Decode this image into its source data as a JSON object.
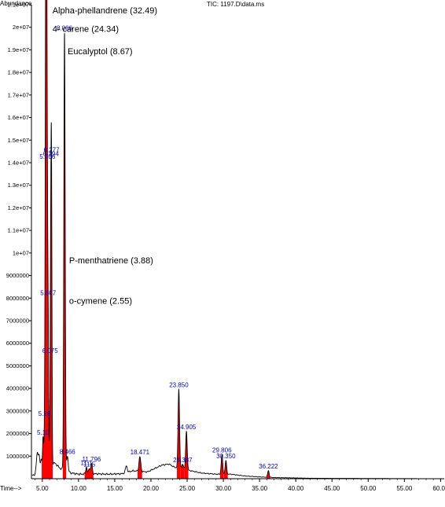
{
  "chart_data": {
    "type": "line",
    "header_title": "TIC: 1197.D\\data.ms",
    "ylabel": "Abundance",
    "xlabel": "Time-->",
    "xlim": [
      3.5,
      60.5
    ],
    "ylim": [
      0,
      21000000
    ],
    "x_ticks": [
      {
        "value": 5,
        "label": "5.00"
      },
      {
        "value": 10,
        "label": "10.00"
      },
      {
        "value": 15,
        "label": "15.00"
      },
      {
        "value": 20,
        "label": "20.00"
      },
      {
        "value": 25,
        "label": "25.00"
      },
      {
        "value": 30,
        "label": "30.00"
      },
      {
        "value": 35,
        "label": "35.00"
      },
      {
        "value": 40,
        "label": "40.00"
      },
      {
        "value": 45,
        "label": "45.00"
      },
      {
        "value": 50,
        "label": "50.00"
      },
      {
        "value": 55,
        "label": "55.00"
      },
      {
        "value": 60,
        "label": "60.00"
      }
    ],
    "y_ticks": [
      {
        "value": 1000000,
        "label": "1000000"
      },
      {
        "value": 2000000,
        "label": "2000000"
      },
      {
        "value": 3000000,
        "label": "3000000"
      },
      {
        "value": 4000000,
        "label": "4000000"
      },
      {
        "value": 5000000,
        "label": "5000000"
      },
      {
        "value": 6000000,
        "label": "6000000"
      },
      {
        "value": 7000000,
        "label": "7000000"
      },
      {
        "value": 8000000,
        "label": "8000000"
      },
      {
        "value": 9000000,
        "label": "9000000"
      },
      {
        "value": 10000000,
        "label": "1e+07"
      },
      {
        "value": 11000000,
        "label": "1.1e+07"
      },
      {
        "value": 12000000,
        "label": "1.2e+07"
      },
      {
        "value": 13000000,
        "label": "1.3e+07"
      },
      {
        "value": 14000000,
        "label": "1.4e+07"
      },
      {
        "value": 15000000,
        "label": "1.5e+07"
      },
      {
        "value": 16000000,
        "label": "1.6e+07"
      },
      {
        "value": 17000000,
        "label": "1.7e+07"
      },
      {
        "value": 18000000,
        "label": "1.8e+07"
      },
      {
        "value": 19000000,
        "label": "1.9e+07"
      },
      {
        "value": 20000000,
        "label": "2e+07"
      },
      {
        "value": 21000000,
        "label": "2.1e+07"
      }
    ],
    "baseline": [
      [
        3.6,
        150000
      ],
      [
        4.5,
        250000
      ],
      [
        6.7,
        700000
      ],
      [
        7.5,
        450000
      ],
      [
        9.0,
        250000
      ],
      [
        10.0,
        200000
      ],
      [
        12.0,
        220000
      ],
      [
        14.0,
        200000
      ],
      [
        16.0,
        220000
      ],
      [
        17.5,
        350000
      ],
      [
        19.5,
        300000
      ],
      [
        20.5,
        450000
      ],
      [
        21.5,
        600000
      ],
      [
        22.5,
        650000
      ],
      [
        23.3,
        500000
      ],
      [
        24.5,
        450000
      ],
      [
        25.5,
        350000
      ],
      [
        27.0,
        250000
      ],
      [
        29.0,
        200000
      ],
      [
        31.0,
        200000
      ],
      [
        33.0,
        120000
      ],
      [
        35.0,
        80000
      ],
      [
        37.0,
        50000
      ],
      [
        39.0,
        40000
      ],
      [
        42.0,
        20000
      ],
      [
        60.4,
        0
      ]
    ],
    "peaks": [
      {
        "x": 4.3,
        "y": 900000,
        "w": 0.12,
        "label": ""
      },
      {
        "x": 4.55,
        "y": 700000,
        "w": 0.1,
        "label": ""
      },
      {
        "x": 4.85,
        "y": 550000,
        "w": 0.1,
        "label": ""
      },
      {
        "x": 5.1,
        "y": 1400000,
        "w": 0.07,
        "label": "5.10"
      },
      {
        "x": 5.28,
        "y": 1150000,
        "w": 0.07,
        "label": "5.28"
      },
      {
        "x": 5.473,
        "y": 19700000,
        "w": 0.08,
        "label": "5.473"
      },
      {
        "x": 5.587,
        "y": 20300000,
        "w": 0.07,
        "label": "5.587"
      },
      {
        "x": 5.706,
        "y": 7100000,
        "w": 0.06,
        "label": "5.706"
      },
      {
        "x": 5.807,
        "y": 5600000,
        "w": 0.06,
        "label": "5.807"
      },
      {
        "x": 6.194,
        "y": 9800000,
        "w": 0.08,
        "label": "6.194"
      },
      {
        "x": 6.277,
        "y": 7800000,
        "w": 0.06,
        "label": "6.277"
      },
      {
        "x": 6.075,
        "y": 1600000,
        "w": 0.1,
        "label": "6.075"
      },
      {
        "x": 8.066,
        "y": 19400000,
        "w": 0.09,
        "label": "8.066"
      },
      {
        "x": 8.466,
        "y": 700000,
        "w": 0.1,
        "label": "8.466"
      },
      {
        "x": 11.1,
        "y": 300000,
        "w": 0.1,
        "label": "11.1"
      },
      {
        "x": 11.5,
        "y": 250000,
        "w": 0.1,
        "label": "11.5"
      },
      {
        "x": 11.796,
        "y": 450000,
        "w": 0.1,
        "label": "11.796"
      },
      {
        "x": 16.6,
        "y": 300000,
        "w": 0.12,
        "label": ""
      },
      {
        "x": 18.471,
        "y": 650000,
        "w": 0.12,
        "label": "18.471"
      },
      {
        "x": 23.85,
        "y": 3500000,
        "w": 0.1,
        "label": "23.850"
      },
      {
        "x": 24.387,
        "y": 200000,
        "w": 0.1,
        "label": "24.387"
      },
      {
        "x": 24.905,
        "y": 1700000,
        "w": 0.1,
        "label": "24.905"
      },
      {
        "x": 29.806,
        "y": 850000,
        "w": 0.1,
        "label": "29.806"
      },
      {
        "x": 30.35,
        "y": 600000,
        "w": 0.1,
        "label": "30.350"
      },
      {
        "x": 36.222,
        "y": 300000,
        "w": 0.1,
        "label": "36.222"
      }
    ],
    "red_fill_peaks": [
      5.1,
      5.28,
      5.473,
      5.587,
      5.706,
      5.807,
      6.194,
      6.277,
      6.075,
      8.066,
      11.1,
      11.5,
      11.796,
      18.471,
      23.85,
      24.387,
      24.905,
      29.806,
      30.35,
      36.222
    ],
    "annotations": [
      {
        "text": "Alpha-phellandrene (32.49)",
        "x": 6.4,
        "y": 20620000
      },
      {
        "text": "4- carene (24.34)",
        "x": 6.4,
        "y": 19800000
      },
      {
        "text": "Eucalyptol (8.67)",
        "x": 8.5,
        "y": 18800000
      },
      {
        "text": "P-menthatriene (3.88)",
        "x": 8.7,
        "y": 9550000
      },
      {
        "text": "o-cymene (2.55)",
        "x": 8.7,
        "y": 7750000
      }
    ],
    "colors": {
      "line": "#000000",
      "fill": "#ff0000",
      "peak_label": "#0000cc",
      "axis": "#000000"
    }
  }
}
